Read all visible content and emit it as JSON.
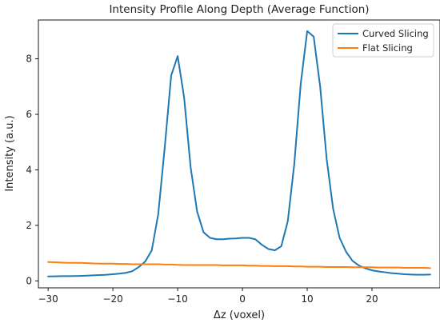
{
  "chart_data": {
    "type": "line",
    "title": "Intensity Profile Along Depth (Average Function)",
    "xlabel": "Δz (voxel)",
    "ylabel": "Intensity (a.u.)",
    "xlim": [
      -31.5,
      30.5
    ],
    "ylim": [
      -0.25,
      9.4
    ],
    "xticks": [
      -30,
      -20,
      -10,
      0,
      10,
      20
    ],
    "yticks": [
      0,
      2,
      4,
      6,
      8
    ],
    "grid": false,
    "legend_position": "top-right",
    "x": [
      -30,
      -29,
      -28,
      -27,
      -26,
      -25,
      -24,
      -23,
      -22,
      -21,
      -20,
      -19,
      -18,
      -17,
      -16,
      -15,
      -14,
      -13,
      -12,
      -11,
      -10,
      -9,
      -8,
      -7,
      -6,
      -5,
      -4,
      -3,
      -2,
      -1,
      0,
      1,
      2,
      3,
      4,
      5,
      6,
      7,
      8,
      9,
      10,
      11,
      12,
      13,
      14,
      15,
      16,
      17,
      18,
      19,
      20,
      21,
      22,
      23,
      24,
      25,
      26,
      27,
      28,
      29
    ],
    "series": [
      {
        "name": "Curved Slicing",
        "color": "#1f77b4",
        "values": [
          0.16,
          0.165,
          0.17,
          0.17,
          0.175,
          0.18,
          0.19,
          0.2,
          0.21,
          0.22,
          0.24,
          0.26,
          0.29,
          0.35,
          0.5,
          0.7,
          1.1,
          2.4,
          4.8,
          7.4,
          8.1,
          6.6,
          4.1,
          2.5,
          1.75,
          1.55,
          1.5,
          1.5,
          1.52,
          1.53,
          1.55,
          1.55,
          1.5,
          1.3,
          1.15,
          1.1,
          1.25,
          2.15,
          4.2,
          7.1,
          9.0,
          8.8,
          7.0,
          4.4,
          2.6,
          1.55,
          1.05,
          0.72,
          0.55,
          0.45,
          0.38,
          0.34,
          0.31,
          0.28,
          0.26,
          0.24,
          0.23,
          0.22,
          0.22,
          0.23
        ]
      },
      {
        "name": "Flat Slicing",
        "color": "#ff7f0e",
        "values": [
          0.68,
          0.67,
          0.66,
          0.65,
          0.65,
          0.65,
          0.64,
          0.63,
          0.62,
          0.62,
          0.62,
          0.61,
          0.61,
          0.6,
          0.6,
          0.6,
          0.6,
          0.6,
          0.59,
          0.59,
          0.58,
          0.57,
          0.57,
          0.57,
          0.57,
          0.57,
          0.57,
          0.56,
          0.56,
          0.56,
          0.56,
          0.55,
          0.55,
          0.54,
          0.54,
          0.53,
          0.53,
          0.53,
          0.52,
          0.52,
          0.51,
          0.51,
          0.51,
          0.5,
          0.5,
          0.5,
          0.5,
          0.49,
          0.49,
          0.49,
          0.49,
          0.48,
          0.48,
          0.48,
          0.48,
          0.47,
          0.47,
          0.47,
          0.47,
          0.46
        ]
      }
    ]
  }
}
